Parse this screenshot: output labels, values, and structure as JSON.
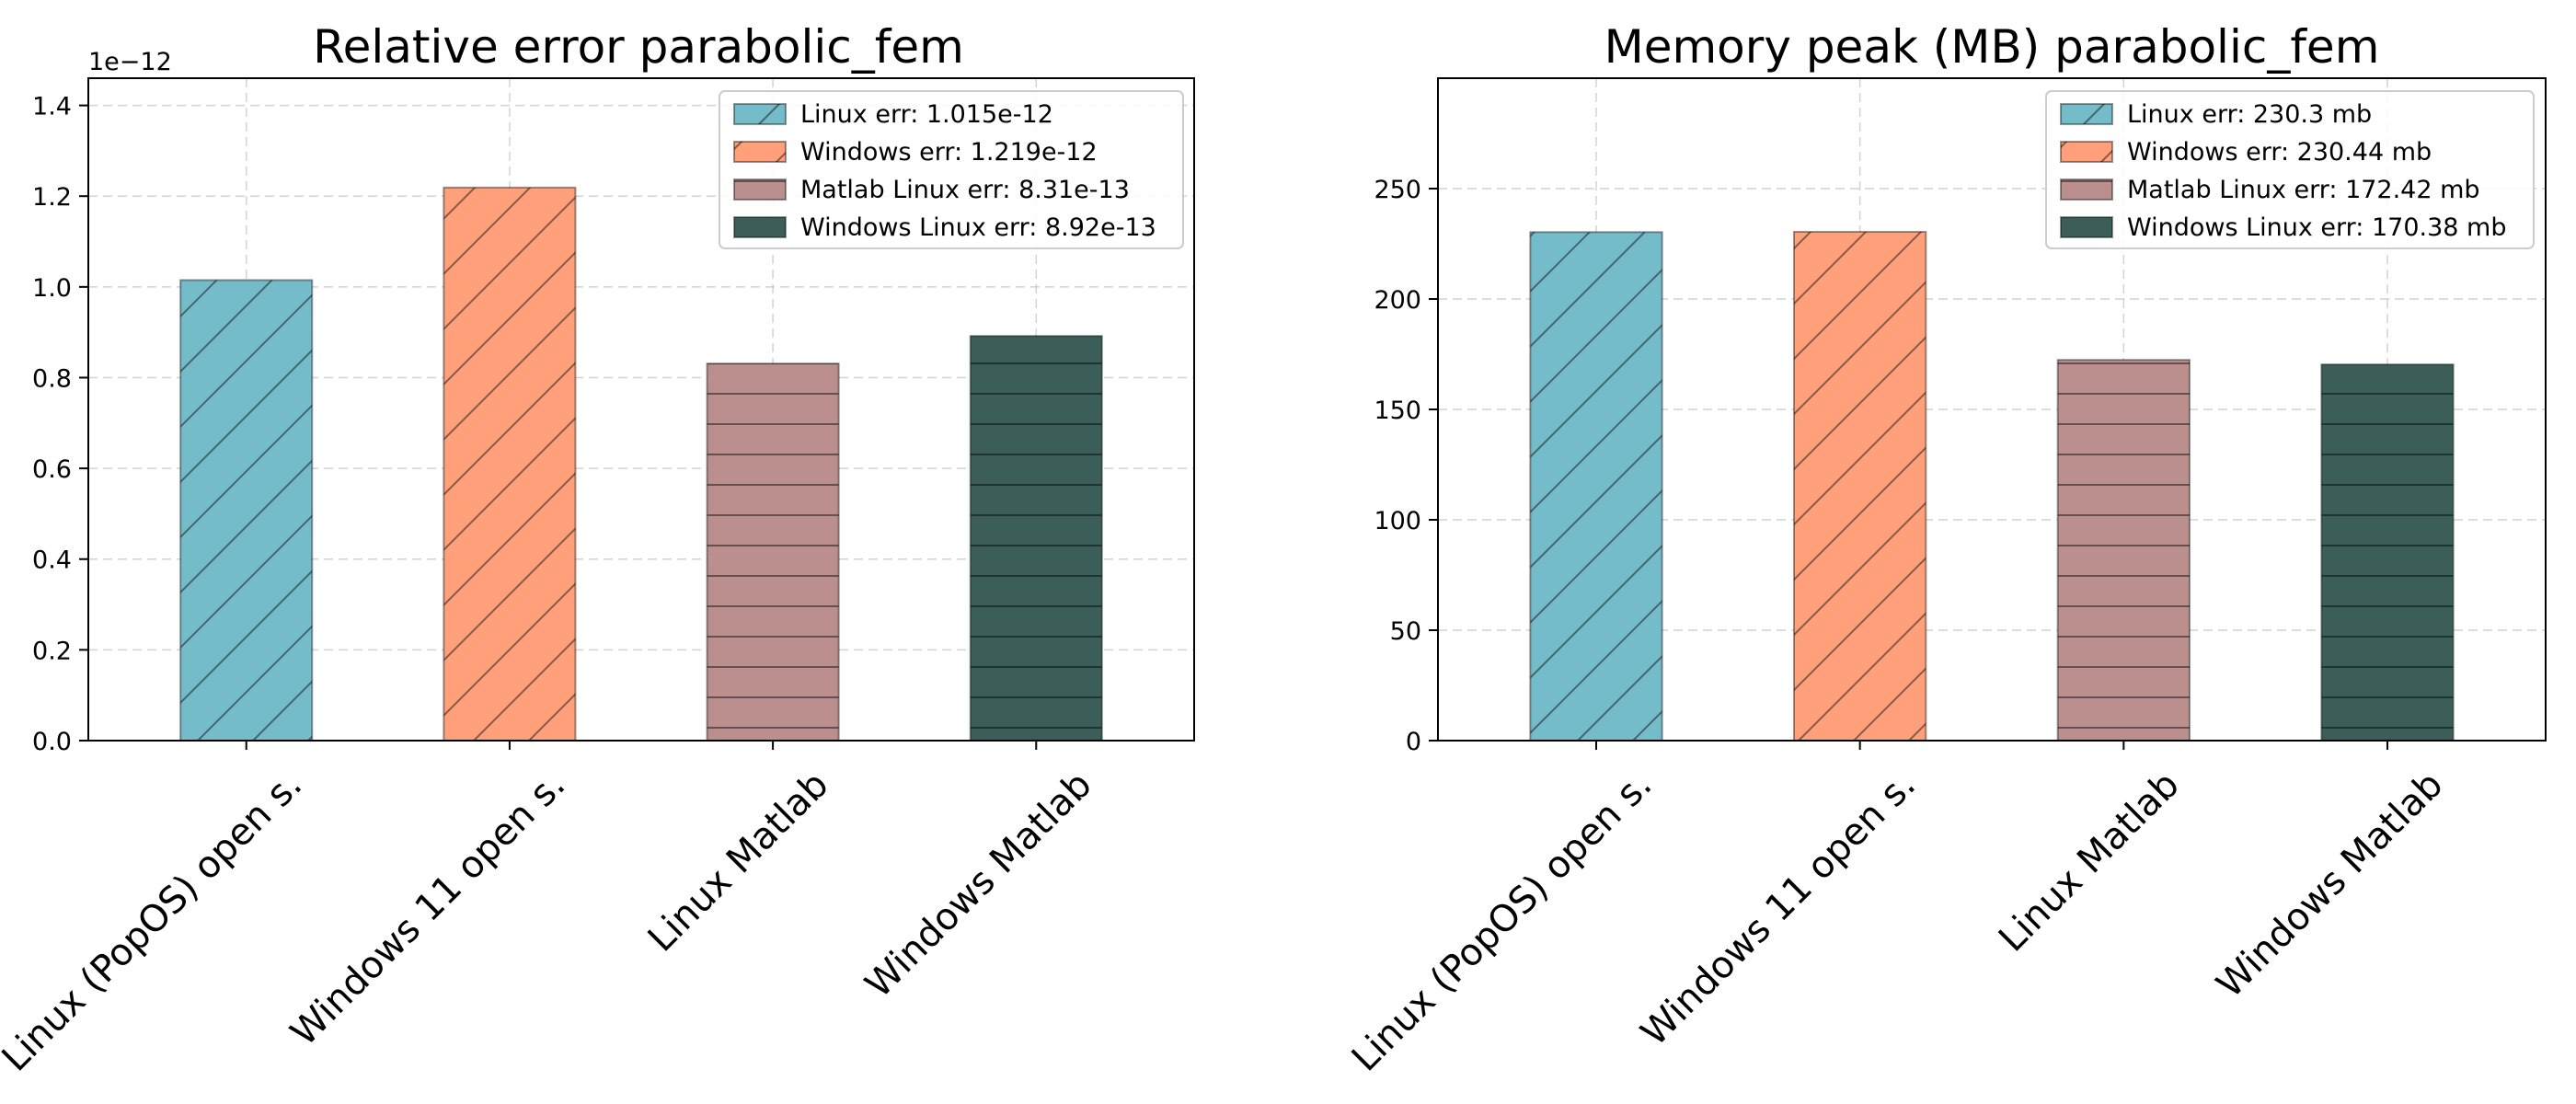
{
  "chart_data": [
    {
      "type": "bar",
      "title": "Relative error parabolic_fem",
      "categories": [
        "Linux (PopOS) open s.",
        "Windows 11 open s.",
        "Linux Matlab",
        "Windows Matlab"
      ],
      "values": [
        1.015e-12,
        1.219e-12,
        8.31e-13,
        8.92e-13
      ],
      "scale_factor": 1e-12,
      "offset_text": "1e−12",
      "ylim": [
        0,
        1.46
      ],
      "yticks": [
        0.0,
        0.2,
        0.4,
        0.6,
        0.8,
        1.0,
        1.2,
        1.4
      ],
      "ytick_labels": [
        "0.0",
        "0.2",
        "0.4",
        "0.6",
        "0.8",
        "1.0",
        "1.2",
        "1.4"
      ],
      "colors": [
        "#74bcc9",
        "#ffa07a",
        "#bc8f8f",
        "#3b5f58"
      ],
      "hatches": [
        "diagonal",
        "diagonal",
        "horizontal",
        "horizontal"
      ],
      "legend": [
        "Linux err: 1.015e-12",
        "Windows err: 1.219e-12",
        "Matlab Linux err: 8.31e-13",
        "Windows Linux err: 8.92e-13"
      ],
      "legend_position": "top-right",
      "grid": true,
      "xlabel": "",
      "ylabel": ""
    },
    {
      "type": "bar",
      "title": "Memory peak (MB) parabolic_fem",
      "categories": [
        "Linux (PopOS) open s.",
        "Windows 11 open s.",
        "Linux Matlab",
        "Windows Matlab"
      ],
      "values": [
        230.3,
        230.44,
        172.42,
        170.38
      ],
      "scale_factor": 1,
      "offset_text": "",
      "ylim": [
        0,
        300
      ],
      "yticks": [
        0,
        50,
        100,
        150,
        200,
        250
      ],
      "ytick_labels": [
        "0",
        "50",
        "100",
        "150",
        "200",
        "250"
      ],
      "colors": [
        "#74bcc9",
        "#ffa07a",
        "#bc8f8f",
        "#3b5f58"
      ],
      "hatches": [
        "diagonal",
        "diagonal",
        "horizontal",
        "horizontal"
      ],
      "legend": [
        "Linux err: 230.3 mb",
        "Windows err: 230.44 mb",
        "Matlab Linux err: 172.42 mb",
        "Windows Linux err: 170.38 mb"
      ],
      "legend_position": "top-right",
      "grid": true,
      "xlabel": "",
      "ylabel": ""
    }
  ]
}
